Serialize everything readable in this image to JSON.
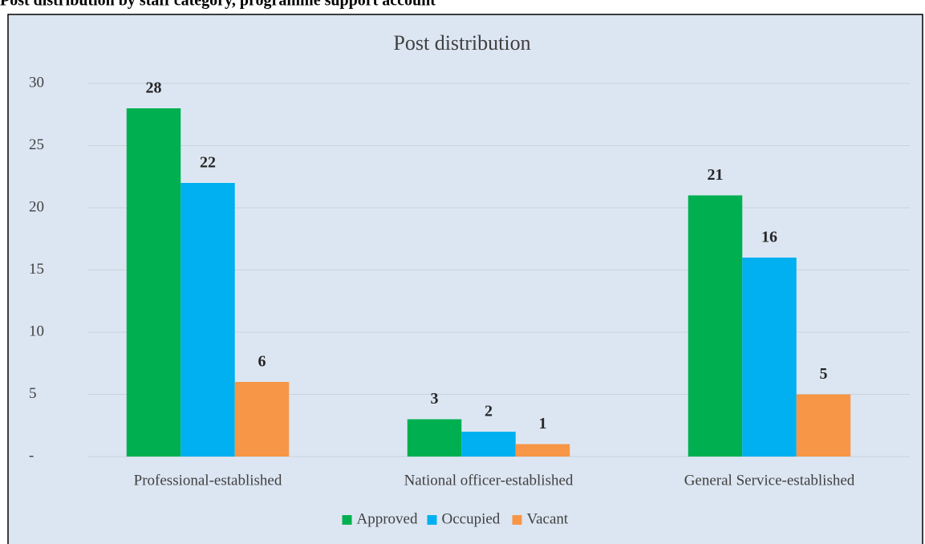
{
  "heading": "Post distribution by staff category, programme support account",
  "chart_data": {
    "type": "bar",
    "title": "Post distribution",
    "categories": [
      "Professional-established",
      "National officer-established",
      "General Service-established"
    ],
    "series": [
      {
        "name": "Approved",
        "color": "#00b050",
        "values": [
          28,
          3,
          21
        ]
      },
      {
        "name": "Occupied",
        "color": "#00b0f0",
        "values": [
          22,
          2,
          16
        ]
      },
      {
        "name": "Vacant",
        "color": "#f79646",
        "values": [
          6,
          1,
          5
        ]
      }
    ],
    "ylim": [
      0,
      30
    ],
    "yticks": [
      {
        "value": 0,
        "label": "-"
      },
      5,
      10,
      15,
      20,
      25,
      30
    ],
    "grid": true,
    "legend": "bottom"
  }
}
